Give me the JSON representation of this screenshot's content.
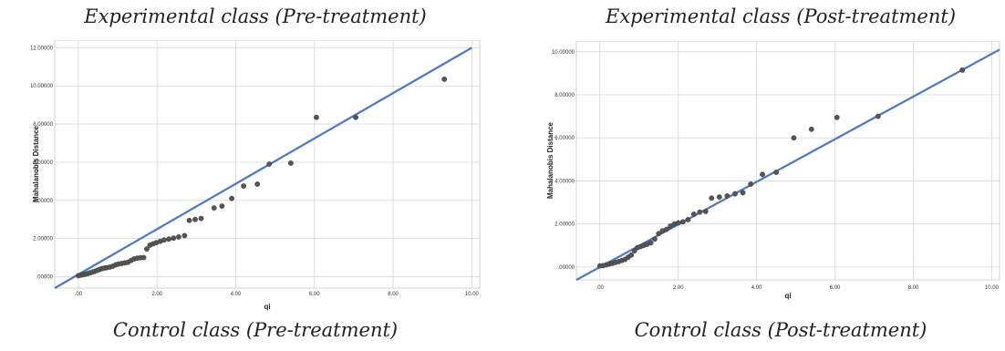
{
  "captions": {
    "top_left": "Experimental class (Pre-treatment)",
    "top_right": "Experimental class (Post-treatment)",
    "bottom_left": "Control class (Pre-treatment)",
    "bottom_right": "Control class (Post-treatment)"
  },
  "colors": {
    "line": "#4a78c4",
    "point": "#555555",
    "grid": "#d8d8d8",
    "frame": "#c8c8c8"
  },
  "chart_data": [
    {
      "type": "scatter",
      "xlabel": "qi",
      "ylabel": "Mahalanobis Distance",
      "xlim": [
        -0.6,
        10.2
      ],
      "ylim": [
        -0.6,
        12.4
      ],
      "x_ticks": [
        0,
        2,
        4,
        6,
        8,
        10
      ],
      "x_tick_labels": [
        ".00",
        "2.00",
        "4.00",
        "6.00",
        "8.00",
        "10.00"
      ],
      "y_ticks": [
        0,
        2,
        4,
        6,
        8,
        10,
        12
      ],
      "y_tick_labels": [
        ".00000",
        "2.00000",
        "4.00000",
        "6.00000",
        "8.00000",
        "10.00000",
        "12.00000"
      ],
      "grid": true,
      "reference_line": {
        "x": [
          -0.6,
          10
        ],
        "y": [
          -0.6,
          12
        ]
      },
      "points": [
        [
          0.0,
          0.05
        ],
        [
          0.06,
          0.08
        ],
        [
          0.12,
          0.1
        ],
        [
          0.18,
          0.13
        ],
        [
          0.24,
          0.16
        ],
        [
          0.3,
          0.2
        ],
        [
          0.36,
          0.24
        ],
        [
          0.42,
          0.28
        ],
        [
          0.48,
          0.33
        ],
        [
          0.54,
          0.38
        ],
        [
          0.6,
          0.42
        ],
        [
          0.66,
          0.45
        ],
        [
          0.72,
          0.47
        ],
        [
          0.8,
          0.5
        ],
        [
          0.88,
          0.55
        ],
        [
          0.95,
          0.62
        ],
        [
          1.02,
          0.66
        ],
        [
          1.1,
          0.69
        ],
        [
          1.18,
          0.72
        ],
        [
          1.26,
          0.75
        ],
        [
          1.34,
          0.85
        ],
        [
          1.42,
          0.93
        ],
        [
          1.5,
          0.97
        ],
        [
          1.58,
          0.99
        ],
        [
          1.66,
          1.0
        ],
        [
          1.74,
          1.45
        ],
        [
          1.82,
          1.65
        ],
        [
          1.9,
          1.72
        ],
        [
          1.98,
          1.78
        ],
        [
          2.08,
          1.85
        ],
        [
          2.18,
          1.92
        ],
        [
          2.3,
          1.97
        ],
        [
          2.42,
          2.02
        ],
        [
          2.55,
          2.08
        ],
        [
          2.7,
          2.15
        ],
        [
          2.82,
          2.95
        ],
        [
          2.97,
          3.0
        ],
        [
          3.12,
          3.05
        ],
        [
          3.45,
          3.6
        ],
        [
          3.65,
          3.7
        ],
        [
          3.9,
          4.1
        ],
        [
          4.2,
          4.75
        ],
        [
          4.55,
          4.85
        ],
        [
          4.85,
          5.9
        ],
        [
          5.4,
          5.95
        ],
        [
          6.05,
          8.35
        ],
        [
          7.05,
          8.35
        ],
        [
          9.3,
          10.35
        ]
      ]
    },
    {
      "type": "scatter",
      "xlabel": "qi",
      "ylabel": "Mahalanobis Distance",
      "xlim": [
        -0.6,
        10.2
      ],
      "ylim": [
        -0.6,
        10.5
      ],
      "x_ticks": [
        0,
        2,
        4,
        6,
        8,
        10
      ],
      "x_tick_labels": [
        ".00",
        "2.00",
        "4.00",
        "6.00",
        "8.00",
        "10.00"
      ],
      "y_ticks": [
        0,
        2,
        4,
        6,
        8,
        10
      ],
      "y_tick_labels": [
        ".00000",
        "2.00000",
        "4.00000",
        "6.00000",
        "8.00000",
        "10.00000"
      ],
      "grid": true,
      "reference_line": {
        "x": [
          -0.6,
          10.2
        ],
        "y": [
          -0.6,
          10.1
        ]
      },
      "points": [
        [
          0.0,
          0.05
        ],
        [
          0.08,
          0.06
        ],
        [
          0.16,
          0.1
        ],
        [
          0.24,
          0.14
        ],
        [
          0.32,
          0.17
        ],
        [
          0.4,
          0.21
        ],
        [
          0.48,
          0.25
        ],
        [
          0.56,
          0.3
        ],
        [
          0.64,
          0.35
        ],
        [
          0.72,
          0.45
        ],
        [
          0.8,
          0.55
        ],
        [
          0.88,
          0.75
        ],
        [
          0.96,
          0.9
        ],
        [
          1.04,
          0.95
        ],
        [
          1.12,
          1.0
        ],
        [
          1.2,
          1.05
        ],
        [
          1.3,
          1.12
        ],
        [
          1.4,
          1.3
        ],
        [
          1.5,
          1.55
        ],
        [
          1.6,
          1.68
        ],
        [
          1.7,
          1.75
        ],
        [
          1.8,
          1.9
        ],
        [
          1.9,
          2.0
        ],
        [
          2.0,
          2.05
        ],
        [
          2.12,
          2.1
        ],
        [
          2.25,
          2.2
        ],
        [
          2.4,
          2.45
        ],
        [
          2.55,
          2.55
        ],
        [
          2.7,
          2.58
        ],
        [
          2.85,
          3.2
        ],
        [
          3.05,
          3.25
        ],
        [
          3.25,
          3.3
        ],
        [
          3.45,
          3.4
        ],
        [
          3.65,
          3.45
        ],
        [
          3.85,
          3.85
        ],
        [
          4.15,
          4.3
        ],
        [
          4.5,
          4.4
        ],
        [
          4.95,
          6.0
        ],
        [
          5.4,
          6.4
        ],
        [
          6.05,
          6.95
        ],
        [
          7.1,
          7.0
        ],
        [
          9.25,
          9.15
        ]
      ]
    }
  ]
}
